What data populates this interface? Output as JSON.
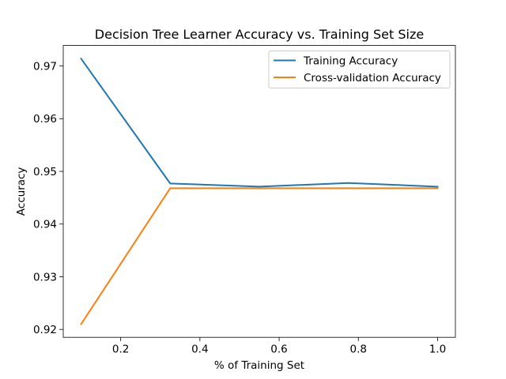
{
  "chart_data": {
    "type": "line",
    "title": "Decision Tree Learner Accuracy vs. Training Set Size",
    "xlabel": "% of Training Set",
    "ylabel": "Accuracy",
    "xlim": [
      0.055,
      1.045
    ],
    "ylim": [
      0.9185,
      0.9739
    ],
    "xticks": [
      0.2,
      0.4,
      0.6,
      0.8,
      1.0
    ],
    "xtick_labels": [
      "0.2",
      "0.4",
      "0.6",
      "0.8",
      "1.0"
    ],
    "yticks": [
      0.92,
      0.93,
      0.94,
      0.95,
      0.96,
      0.97
    ],
    "ytick_labels": [
      "0.92",
      "0.93",
      "0.94",
      "0.95",
      "0.96",
      "0.97"
    ],
    "grid": false,
    "legend_position": "upper right",
    "x": [
      0.1,
      0.325,
      0.55,
      0.775,
      1.0
    ],
    "series": [
      {
        "name": "Training Accuracy",
        "color": "#1f77b4",
        "values": [
          0.9714,
          0.9477,
          0.9471,
          0.9478,
          0.9471
        ]
      },
      {
        "name": "Cross-validation Accuracy",
        "color": "#ff7f0e",
        "values": [
          0.921,
          0.9468,
          0.9468,
          0.9468,
          0.9468
        ]
      }
    ]
  }
}
